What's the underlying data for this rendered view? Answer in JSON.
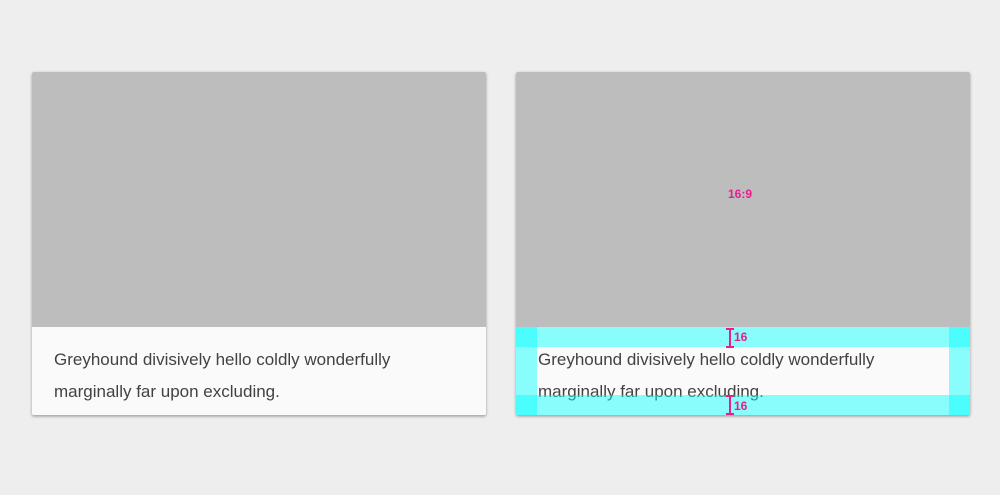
{
  "cards": [
    {
      "body_text": "Greyhound divisively hello coldly wonderfully marginally far upon excluding."
    },
    {
      "body_text": "Greyhound divisively hello coldly wonderfully marginally far upon excluding."
    }
  ],
  "annotations": {
    "aspect_ratio": "16:9",
    "top_padding": "16",
    "bottom_padding": "16"
  },
  "colors": {
    "media": "#bdbdbd",
    "keyline": "#00ffff",
    "annotation": "#e91e8c"
  }
}
